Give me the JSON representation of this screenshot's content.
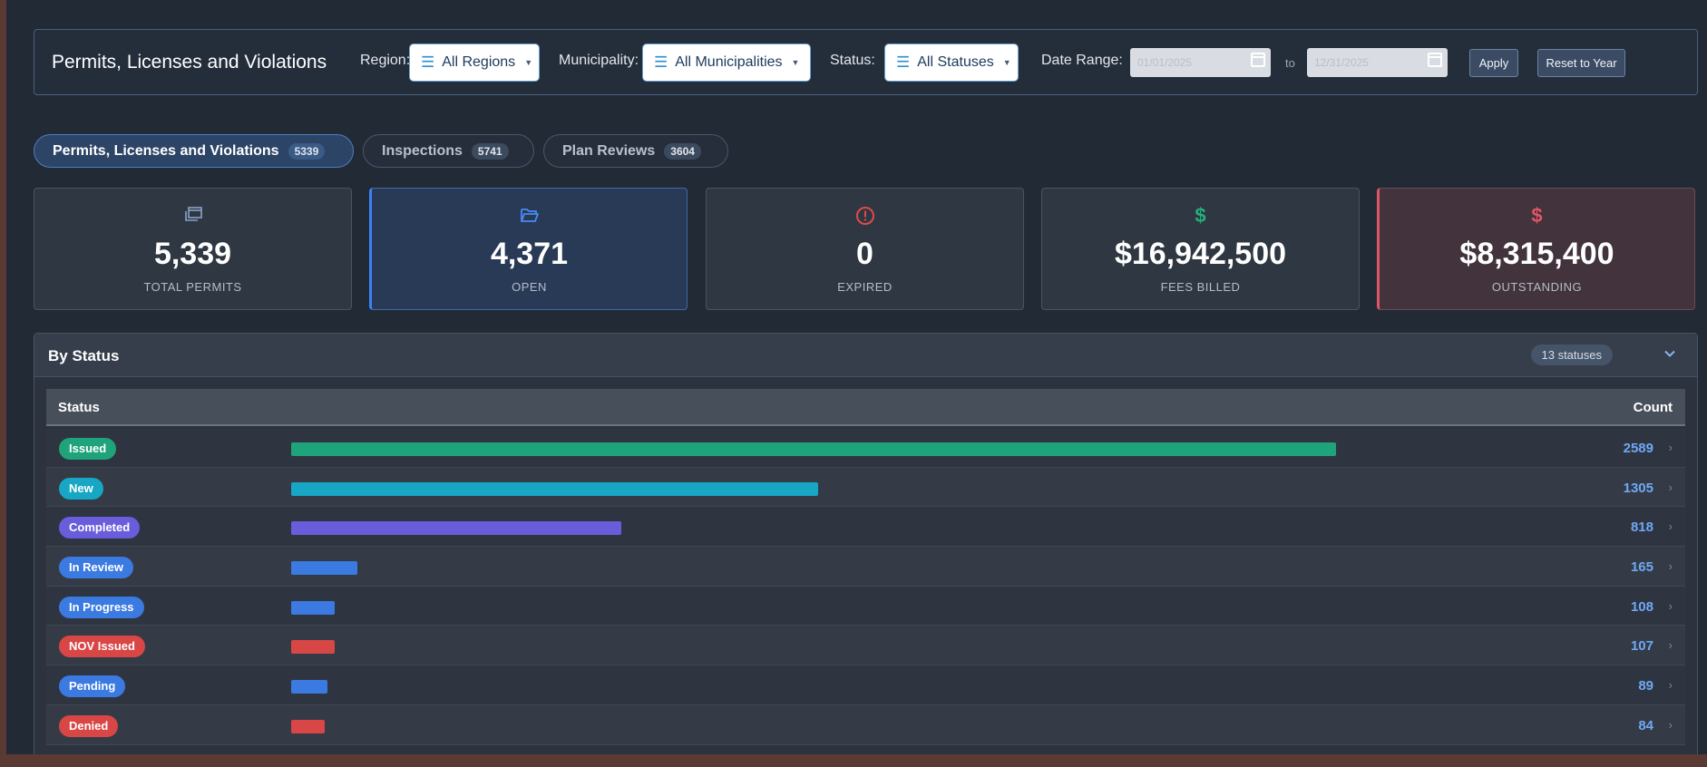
{
  "header": {
    "title": "Permits, Licenses and Violations",
    "region_label": "Region:",
    "region_value": "All Regions",
    "municipality_label": "Municipality:",
    "municipality_value": "All Municipalities",
    "status_label": "Status:",
    "status_value": "All Statuses",
    "date_range_label": "Date Range:",
    "date_from": "01/01/2025",
    "date_to": "12/31/2025",
    "to_label": "to",
    "apply_label": "Apply",
    "reset_label": "Reset to Year"
  },
  "tabs": [
    {
      "label": "Permits, Licenses and Violations",
      "count": "5339",
      "active": true
    },
    {
      "label": "Inspections",
      "count": "5741",
      "active": false
    },
    {
      "label": "Plan Reviews",
      "count": "3604",
      "active": false
    }
  ],
  "kpis": [
    {
      "value": "5,339",
      "label": "TOTAL PERMITS",
      "icon": "copy-icon",
      "color": "#8aa3c8"
    },
    {
      "value": "4,371",
      "label": "OPEN",
      "icon": "folder-open-icon",
      "color": "#4a8af5"
    },
    {
      "value": "0",
      "label": "EXPIRED",
      "icon": "alert-circle-icon",
      "color": "#e04a4a"
    },
    {
      "value": "$16,942,500",
      "label": "FEES BILLED",
      "icon": "dollar-icon",
      "color": "#22b07a"
    },
    {
      "value": "$8,315,400",
      "label": "OUTSTANDING",
      "icon": "dollar-icon",
      "color": "#e05565"
    }
  ],
  "status_panel": {
    "title": "By Status",
    "badge": "13 statuses",
    "col_status": "Status",
    "col_count": "Count",
    "max_count": 2589,
    "rows": [
      {
        "status": "Issued",
        "count": 2589,
        "color": "#1fa37a"
      },
      {
        "status": "New",
        "count": 1305,
        "color": "#17a7c4"
      },
      {
        "status": "Completed",
        "count": 818,
        "color": "#6a5ddb"
      },
      {
        "status": "In Review",
        "count": 165,
        "color": "#3b7ae0"
      },
      {
        "status": "In Progress",
        "count": 108,
        "color": "#3b7ae0"
      },
      {
        "status": "NOV Issued",
        "count": 107,
        "color": "#d94646"
      },
      {
        "status": "Pending",
        "count": 89,
        "color": "#3b7ae0"
      },
      {
        "status": "Denied",
        "count": 84,
        "color": "#d94646"
      }
    ]
  }
}
